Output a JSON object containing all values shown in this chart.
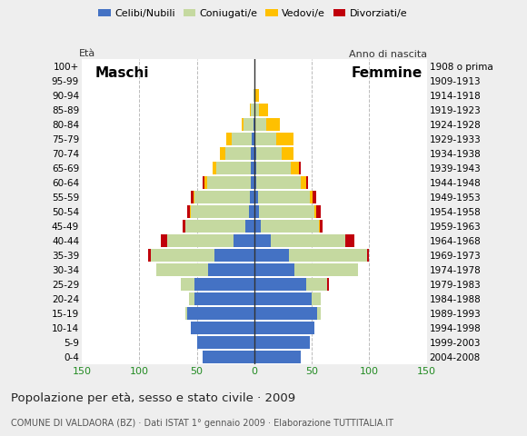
{
  "age_groups": [
    "0-4",
    "5-9",
    "10-14",
    "15-19",
    "20-24",
    "25-29",
    "30-34",
    "35-39",
    "40-44",
    "45-49",
    "50-54",
    "55-59",
    "60-64",
    "65-69",
    "70-74",
    "75-79",
    "80-84",
    "85-89",
    "90-94",
    "95-99",
    "100+"
  ],
  "birth_years": [
    "2004-2008",
    "1999-2003",
    "1994-1998",
    "1989-1993",
    "1984-1988",
    "1979-1983",
    "1974-1978",
    "1969-1973",
    "1964-1968",
    "1959-1963",
    "1954-1958",
    "1949-1953",
    "1944-1948",
    "1939-1943",
    "1934-1938",
    "1929-1933",
    "1924-1928",
    "1919-1923",
    "1914-1918",
    "1909-1913",
    "1908 o prima"
  ],
  "males_celibe": [
    45,
    50,
    55,
    58,
    52,
    52,
    40,
    35,
    18,
    8,
    5,
    4,
    3,
    3,
    3,
    2,
    1,
    0,
    0,
    0,
    0
  ],
  "males_coniugato": [
    0,
    0,
    0,
    2,
    5,
    12,
    45,
    55,
    58,
    52,
    50,
    48,
    38,
    30,
    22,
    18,
    8,
    3,
    1,
    0,
    0
  ],
  "males_vedovo": [
    0,
    0,
    0,
    0,
    0,
    0,
    0,
    0,
    0,
    0,
    1,
    1,
    2,
    3,
    5,
    4,
    2,
    1,
    0,
    0,
    0
  ],
  "males_divorziato": [
    0,
    0,
    0,
    0,
    0,
    0,
    0,
    2,
    5,
    2,
    2,
    2,
    2,
    0,
    0,
    0,
    0,
    0,
    0,
    0,
    0
  ],
  "females_nubile": [
    40,
    48,
    52,
    55,
    50,
    45,
    35,
    30,
    14,
    6,
    4,
    3,
    2,
    2,
    2,
    1,
    0,
    0,
    0,
    0,
    0
  ],
  "females_coniugata": [
    0,
    0,
    0,
    3,
    8,
    18,
    55,
    68,
    65,
    50,
    48,
    45,
    38,
    30,
    22,
    18,
    10,
    4,
    1,
    0,
    0
  ],
  "females_vedova": [
    0,
    0,
    0,
    0,
    0,
    0,
    0,
    0,
    0,
    1,
    2,
    3,
    5,
    7,
    10,
    15,
    12,
    8,
    3,
    1,
    0
  ],
  "females_divorziata": [
    0,
    0,
    0,
    0,
    0,
    2,
    0,
    2,
    8,
    2,
    4,
    3,
    2,
    1,
    0,
    0,
    0,
    0,
    0,
    0,
    0
  ],
  "color_celibe": "#4472c4",
  "color_coniugato": "#c5d9a0",
  "color_vedovo": "#ffc000",
  "color_divorziato": "#c0000b",
  "xlim": 150,
  "xticks": [
    -150,
    -100,
    -50,
    0,
    50,
    100,
    150
  ],
  "title": "Popolazione per età, sesso e stato civile · 2009",
  "subtitle": "COMUNE DI VALDAORA (BZ) · Dati ISTAT 1° gennaio 2009 · Elaborazione TUTTITALIA.IT",
  "legend_labels": [
    "Celibi/Nubili",
    "Coniugati/e",
    "Vedovi/e",
    "Divorziati/e"
  ],
  "background_color": "#eeeeee",
  "plot_bg": "#ffffff",
  "maschi_label": "Maschi",
  "femmine_label": "Femmine",
  "eta_label": "Età",
  "anno_nascita_label": "Anno di nascita"
}
